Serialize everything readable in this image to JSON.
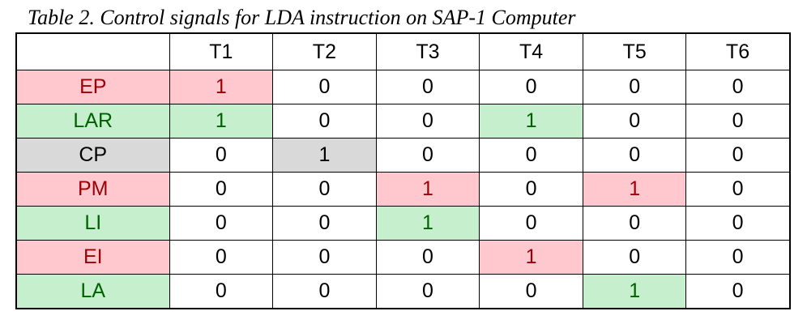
{
  "caption": "Table 2. Control signals for LDA instruction on SAP-1 Computer",
  "columns": [
    "",
    "T1",
    "T2",
    "T3",
    "T4",
    "T5",
    "T6"
  ],
  "styles": {
    "pink": {
      "background": "#ffc7ce",
      "text": "#9c0006"
    },
    "green": {
      "background": "#c6efce",
      "text": "#006100"
    },
    "grey": {
      "background": "#d9d9d9",
      "text": "#000000"
    }
  },
  "rows": [
    {
      "signal": "EP",
      "style": "pink",
      "values": [
        "1",
        "0",
        "0",
        "0",
        "0",
        "0"
      ],
      "highlight": [
        0
      ]
    },
    {
      "signal": "LAR",
      "style": "green",
      "values": [
        "1",
        "0",
        "0",
        "1",
        "0",
        "0"
      ],
      "highlight": [
        0,
        3
      ]
    },
    {
      "signal": "CP",
      "style": "grey",
      "values": [
        "0",
        "1",
        "0",
        "0",
        "0",
        "0"
      ],
      "highlight": [
        1
      ]
    },
    {
      "signal": "PM",
      "style": "pink",
      "values": [
        "0",
        "0",
        "1",
        "0",
        "1",
        "0"
      ],
      "highlight": [
        2,
        4
      ]
    },
    {
      "signal": "LI",
      "style": "green",
      "values": [
        "0",
        "0",
        "1",
        "0",
        "0",
        "0"
      ],
      "highlight": [
        2
      ]
    },
    {
      "signal": "EI",
      "style": "pink",
      "values": [
        "0",
        "0",
        "0",
        "1",
        "0",
        "0"
      ],
      "highlight": [
        3
      ]
    },
    {
      "signal": "LA",
      "style": "green",
      "values": [
        "0",
        "0",
        "0",
        "0",
        "1",
        "0"
      ],
      "highlight": [
        4
      ]
    }
  ]
}
